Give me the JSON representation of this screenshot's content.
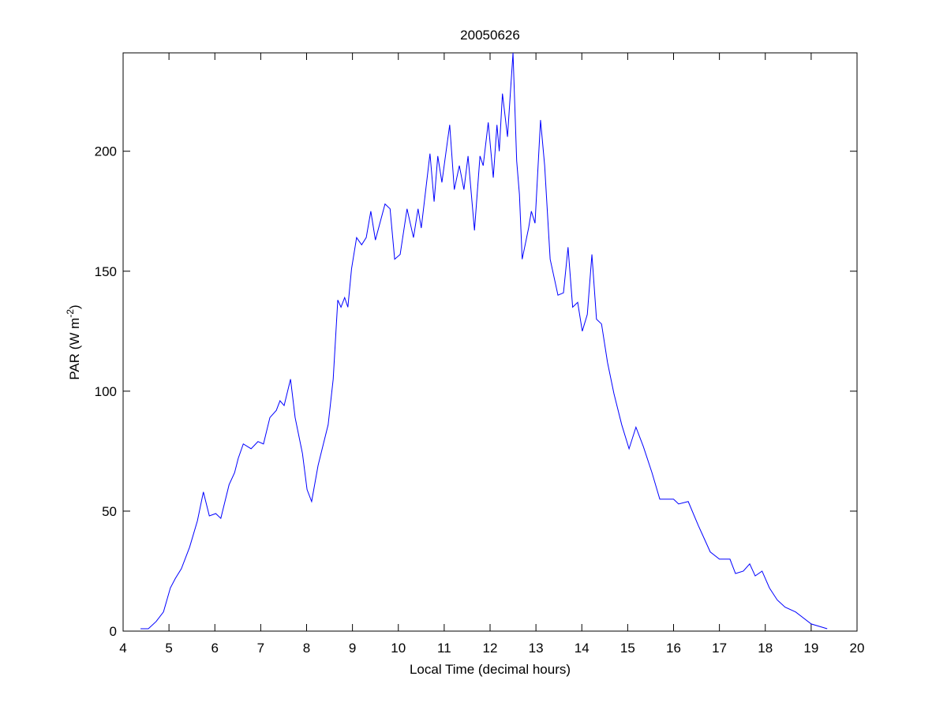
{
  "chart_data": {
    "type": "line",
    "title": "20050626",
    "xlabel": "Local Time (decimal hours)",
    "ylabel": [
      "PAR (W m",
      "-2",
      ")"
    ],
    "xlim": [
      4,
      20
    ],
    "xticks": [
      4,
      5,
      6,
      7,
      8,
      9,
      10,
      11,
      12,
      13,
      14,
      15,
      16,
      17,
      18,
      19,
      20
    ],
    "ylim": [
      0,
      241
    ],
    "yticks": [
      0,
      50,
      100,
      150,
      200
    ],
    "grid": false,
    "series": [
      {
        "color": "#0000ff",
        "x": [
          4.38,
          4.55,
          4.72,
          4.88,
          5.03,
          5.14,
          5.27,
          5.45,
          5.62,
          5.75,
          5.88,
          6.02,
          6.13,
          6.31,
          6.43,
          6.51,
          6.62,
          6.79,
          6.94,
          7.06,
          7.2,
          7.34,
          7.42,
          7.51,
          7.65,
          7.75,
          7.91,
          8.01,
          8.11,
          8.25,
          8.34,
          8.47,
          8.58,
          8.68,
          8.75,
          8.83,
          8.9,
          8.98,
          9.09,
          9.2,
          9.3,
          9.4,
          9.5,
          9.71,
          9.82,
          9.92,
          10.04,
          10.19,
          10.33,
          10.43,
          10.5,
          10.69,
          10.78,
          10.86,
          10.95,
          11.02,
          11.12,
          11.22,
          11.33,
          11.43,
          11.52,
          11.66,
          11.78,
          11.85,
          11.96,
          12.07,
          12.15,
          12.2,
          12.27,
          12.38,
          12.5,
          12.58,
          12.64,
          12.7,
          12.84,
          12.9,
          12.98,
          13.1,
          13.19,
          13.31,
          13.48,
          13.6,
          13.7,
          13.8,
          13.91,
          14.01,
          14.12,
          14.22,
          14.32,
          14.43,
          14.56,
          14.7,
          14.87,
          15.03,
          15.18,
          15.34,
          15.53,
          15.7,
          16.0,
          16.11,
          16.32,
          16.54,
          16.8,
          17.0,
          17.23,
          17.35,
          17.52,
          17.66,
          17.78,
          17.93,
          18.09,
          18.26,
          18.43,
          18.66,
          19.0,
          19.35
        ],
        "values": [
          1,
          1,
          4,
          8,
          18,
          22,
          26,
          35,
          46,
          58,
          48,
          49,
          47,
          61,
          66,
          72,
          78,
          76,
          79,
          78,
          89,
          92,
          96,
          94,
          105,
          89,
          74,
          59,
          54,
          69,
          76,
          86,
          105,
          138,
          135,
          139,
          135,
          151,
          164,
          161,
          164,
          175,
          163,
          178,
          176,
          155,
          157,
          176,
          164,
          176,
          168,
          199,
          179,
          198,
          187,
          197,
          211,
          184,
          194,
          184,
          198,
          167,
          198,
          194,
          212,
          189,
          211,
          200,
          224,
          206,
          241,
          196,
          182,
          155,
          168,
          175,
          170,
          213,
          194,
          155,
          140,
          141,
          160,
          135,
          137,
          125,
          132,
          157,
          130,
          128,
          112,
          99,
          86,
          76,
          85,
          77,
          66,
          55,
          55,
          53,
          54,
          44,
          33,
          30,
          30,
          24,
          25,
          28,
          23,
          25,
          18,
          13,
          10,
          8,
          3,
          1
        ]
      }
    ]
  }
}
